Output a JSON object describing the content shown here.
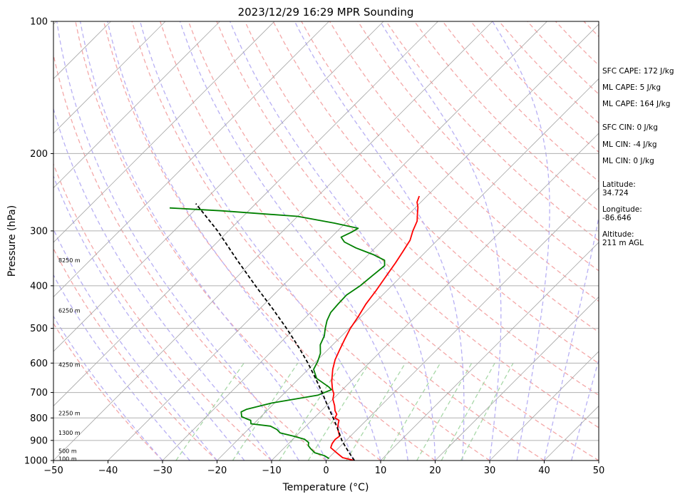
{
  "chart_data": {
    "type": "line",
    "title": "2023/12/29 16:29 MPR Sounding",
    "xlabel": "Temperature (°C)",
    "ylabel": "Pressure (hPa)",
    "xlim": [
      -50,
      50
    ],
    "ylim": [
      1000,
      100
    ],
    "yscale": "log",
    "x_ticks": [
      "−50",
      "−40",
      "−30",
      "−20",
      "−10",
      "0",
      "10",
      "20",
      "30",
      "40",
      "50"
    ],
    "x_tick_values": [
      -50,
      -40,
      -30,
      -20,
      -10,
      0,
      10,
      20,
      30,
      40,
      50
    ],
    "y_ticks": [
      "100",
      "200",
      "300",
      "400",
      "500",
      "600",
      "700",
      "800",
      "900",
      "1000"
    ],
    "y_tick_values": [
      100,
      200,
      300,
      400,
      500,
      600,
      700,
      800,
      900,
      1000
    ],
    "skew": 45,
    "grid": true,
    "series": [
      {
        "color": "#ff0000",
        "points": [
          [
            5.2,
            1000
          ],
          [
            2.5,
            985
          ],
          [
            0.5,
            960
          ],
          [
            -1.5,
            935
          ],
          [
            -2.0,
            915
          ],
          [
            -2.2,
            895
          ],
          [
            -2.0,
            880
          ],
          [
            -3.0,
            860
          ],
          [
            -3.8,
            845
          ],
          [
            -4.5,
            825
          ],
          [
            -5.0,
            810
          ],
          [
            -6.2,
            800
          ],
          [
            -6.5,
            785
          ],
          [
            -7.5,
            770
          ],
          [
            -8.5,
            750
          ],
          [
            -10.0,
            725
          ],
          [
            -10.8,
            705
          ],
          [
            -11.8,
            690
          ],
          [
            -13.5,
            660
          ],
          [
            -15.5,
            620
          ],
          [
            -16.8,
            590
          ],
          [
            -17.8,
            560
          ],
          [
            -18.8,
            530
          ],
          [
            -19.8,
            500
          ],
          [
            -20.5,
            470
          ],
          [
            -21.4,
            440
          ],
          [
            -22.0,
            410
          ],
          [
            -22.8,
            380
          ],
          [
            -23.5,
            355
          ],
          [
            -24.2,
            335
          ],
          [
            -25.0,
            315
          ],
          [
            -26.2,
            300
          ],
          [
            -27.2,
            285
          ],
          [
            -28.4,
            275
          ],
          [
            -29.6,
            265
          ],
          [
            -30.7,
            258
          ],
          [
            -31.4,
            250
          ]
        ]
      },
      {
        "color": "#008000",
        "points": [
          [
            0.2,
            990
          ],
          [
            -1.2,
            975
          ],
          [
            -3.5,
            960
          ],
          [
            -5.0,
            940
          ],
          [
            -6.0,
            925
          ],
          [
            -6.5,
            910
          ],
          [
            -7.8,
            895
          ],
          [
            -10.5,
            880
          ],
          [
            -13.5,
            865
          ],
          [
            -14.7,
            850
          ],
          [
            -16.5,
            835
          ],
          [
            -20.5,
            825
          ],
          [
            -21.2,
            810
          ],
          [
            -22.0,
            805
          ],
          [
            -23.5,
            795
          ],
          [
            -24.5,
            775
          ],
          [
            -24.0,
            765
          ],
          [
            -20.5,
            740
          ],
          [
            -13.5,
            710
          ],
          [
            -12.0,
            690
          ],
          [
            -13.0,
            680
          ],
          [
            -16.8,
            650
          ],
          [
            -19.0,
            620
          ],
          [
            -19.7,
            595
          ],
          [
            -20.7,
            570
          ],
          [
            -22.3,
            545
          ],
          [
            -23.2,
            520
          ],
          [
            -24.4,
            500
          ],
          [
            -25.5,
            480
          ],
          [
            -26.3,
            460
          ],
          [
            -26.5,
            440
          ],
          [
            -26.6,
            420
          ],
          [
            -25.8,
            400
          ],
          [
            -25.4,
            380
          ],
          [
            -25.0,
            360
          ],
          [
            -26.0,
            350
          ],
          [
            -29.0,
            340
          ],
          [
            -33.5,
            328
          ],
          [
            -36.7,
            318
          ],
          [
            -38.2,
            310
          ],
          [
            -37.2,
            302
          ],
          [
            -36.7,
            296
          ],
          [
            -42.0,
            288
          ],
          [
            -50.0,
            278
          ],
          [
            -65.0,
            270
          ],
          [
            -75.0,
            266
          ]
        ]
      },
      {
        "color": "#000000",
        "dashed": true,
        "points": [
          [
            5.2,
            1000
          ],
          [
            3.7,
            975
          ],
          [
            2.2,
            950
          ],
          [
            0.7,
            925
          ],
          [
            -0.8,
            900
          ],
          [
            -3.5,
            850
          ],
          [
            -6.5,
            800
          ],
          [
            -9.8,
            750
          ],
          [
            -13.2,
            700
          ],
          [
            -17.0,
            650
          ],
          [
            -21.2,
            600
          ],
          [
            -26.0,
            550
          ],
          [
            -31.5,
            500
          ],
          [
            -37.8,
            450
          ],
          [
            -45.0,
            400
          ],
          [
            -53.0,
            350
          ],
          [
            -62.0,
            300
          ],
          [
            -71.0,
            260
          ]
        ]
      }
    ],
    "height_labels": [
      "8250 m",
      "6250 m",
      "4250 m",
      "2250 m",
      "1300 m",
      "500 m",
      "100 m"
    ],
    "height_label_pressures": [
      350,
      455,
      605,
      780,
      865,
      950,
      990
    ]
  },
  "side_text": [
    "SFC CAPE: 172 J/kg",
    "ML CAPE: 5 J/kg",
    "ML CAPE: 164 J/kg",
    "SFC CIN: 0 J/kg",
    "ML CIN: -4 J/kg",
    "ML CIN: 0 J/kg",
    "Latitude:",
    "34.724",
    "Longitude:",
    "-86.646",
    "Altitude:",
    "211 m AGL"
  ]
}
